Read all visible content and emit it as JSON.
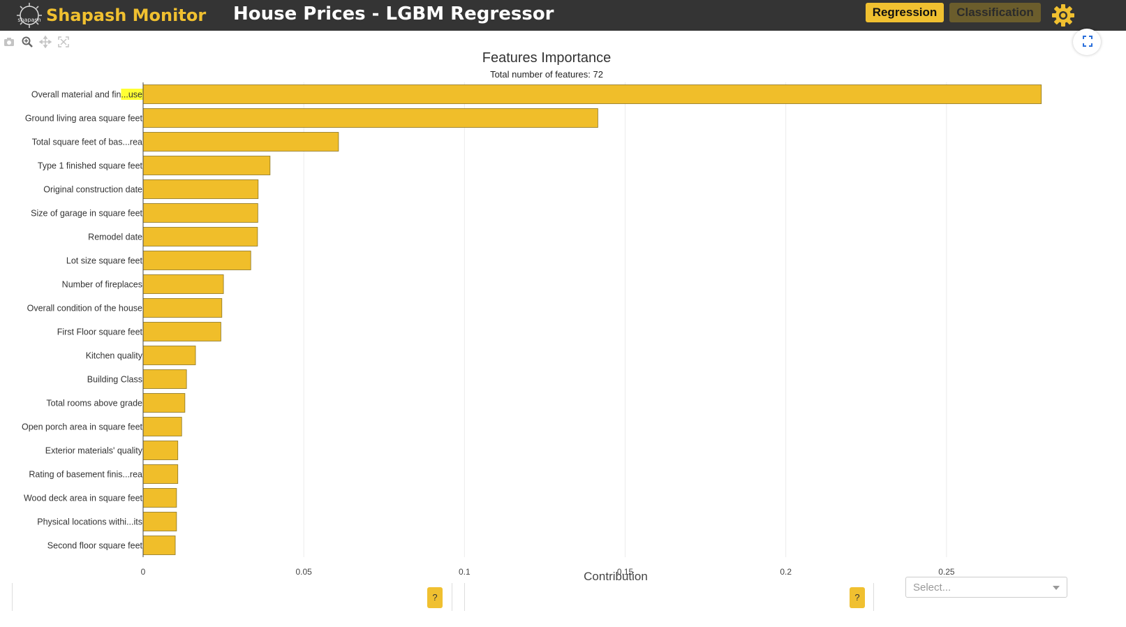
{
  "header": {
    "brand_name": "Shapash Monitor",
    "logo_text": "shapash",
    "page_title": "House Prices - LGBM Regressor",
    "regression_label": "Regression",
    "classification_label": "Classification"
  },
  "colors": {
    "accent": "#f0c030",
    "bar": "#f0be2a",
    "bar_outline": "#8a7422",
    "topbar": "#343434"
  },
  "modebar": [
    "camera-icon",
    "zoom-icon",
    "pan-icon",
    "autoscale-icon"
  ],
  "chart_data": {
    "type": "bar",
    "orientation": "horizontal",
    "title": "Features Importance",
    "subtitle": "Total number of features: 72",
    "xlabel": "Contribution",
    "ylabel": "",
    "xlim": [
      0,
      0.285
    ],
    "xticks": [
      0,
      0.05,
      0.1,
      0.15,
      0.2,
      0.25
    ],
    "xtick_labels": [
      "0",
      "0.05",
      "0.1",
      "0.15",
      "0.2",
      "0.25"
    ],
    "categories": [
      "Overall material and fin...use",
      "Ground living area square feet",
      "Total square feet of bas...rea",
      "Type 1 finished square feet",
      "Original construction date",
      "Size of garage in square feet",
      "Remodel date",
      "Lot size square feet",
      "Number of fireplaces",
      "Overall condition of the house",
      "First Floor square feet",
      "Kitchen quality",
      "Building Class",
      "Total rooms above grade",
      "Open porch area in square feet",
      "Exterior materials' quality",
      "Rating of basement finis...rea",
      "Wood deck area in square feet",
      "Physical locations withi...its",
      "Second floor square feet"
    ],
    "values": [
      0.2795,
      0.1415,
      0.0608,
      0.0395,
      0.0358,
      0.0357,
      0.0356,
      0.0335,
      0.025,
      0.0245,
      0.0242,
      0.0163,
      0.0135,
      0.013,
      0.012,
      0.0108,
      0.0108,
      0.0104,
      0.0104,
      0.01
    ],
    "highlighted_label_part": "...use",
    "grid": true
  },
  "panels": {
    "help_label": "?",
    "select_placeholder": "Select..."
  }
}
